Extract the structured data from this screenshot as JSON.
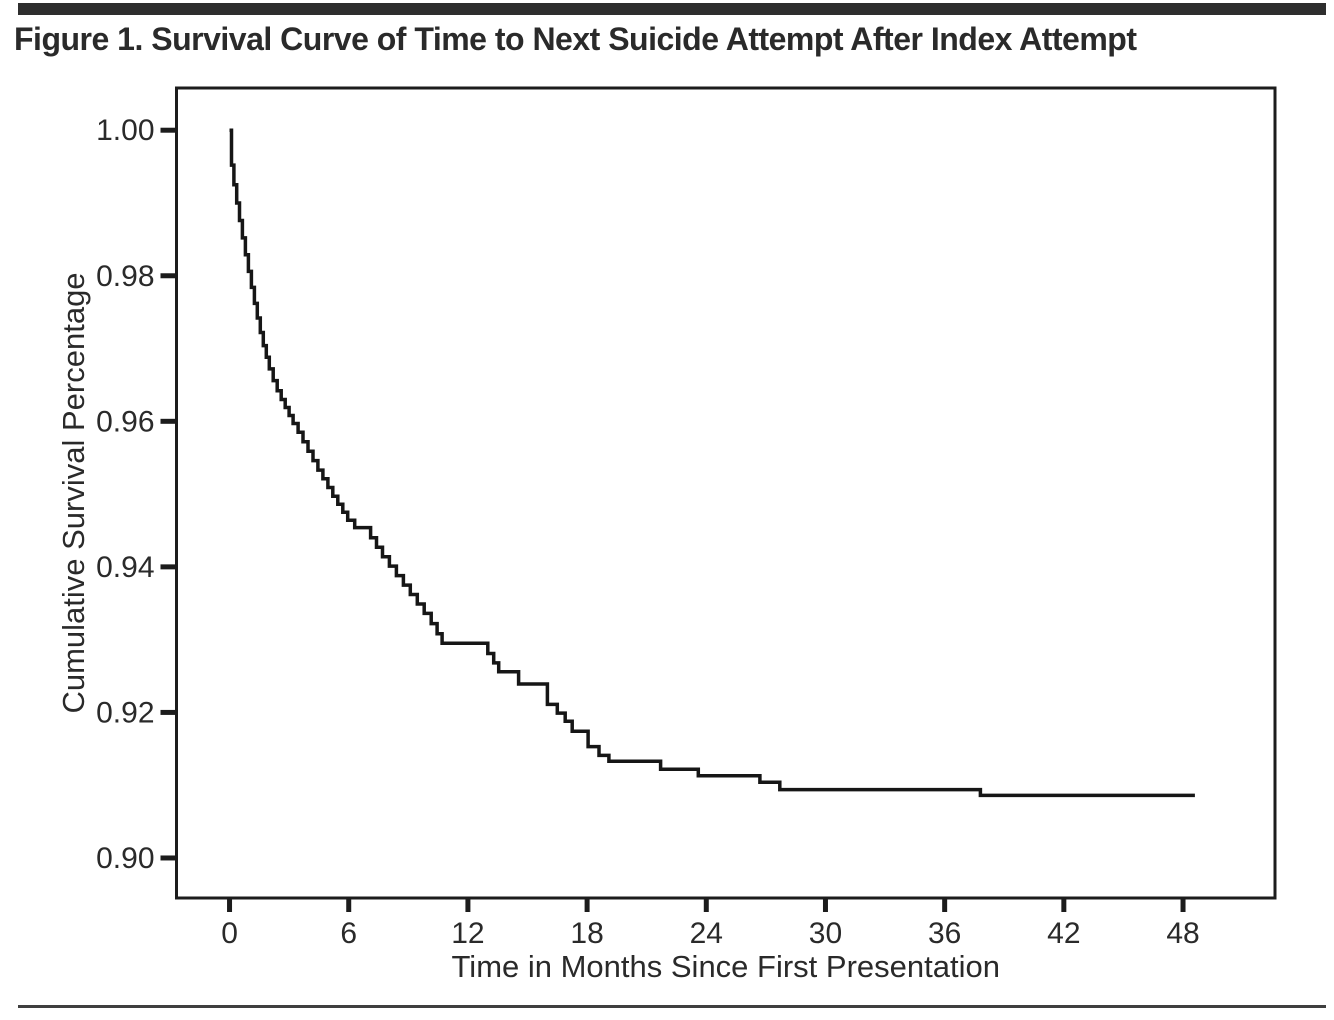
{
  "figure": {
    "title": "Figure 1. Survival Curve of Time to Next Suicide Attempt After Index Attempt"
  },
  "theme": {
    "curve_color": "#161616",
    "axis_color": "#1c1c1c",
    "text_color": "#2a2a2a",
    "top_bar_color": "#2e2e2e",
    "bottom_rule_color": "#3f3f3f"
  },
  "chart_data": {
    "type": "line",
    "subtype": "kaplan-meier-step-function",
    "title": "Figure 1. Survival Curve of Time to Next Suicide Attempt After Index Attempt",
    "xlabel": "Time in Months Since First Presentation",
    "ylabel": "Cumulative Survival Percentage",
    "grid": false,
    "legend": "none",
    "xlim": [
      -2.67,
      52.63
    ],
    "ylim": [
      0.8945,
      1.0058
    ],
    "xticks": [
      0,
      6,
      12,
      18,
      24,
      30,
      36,
      42,
      48
    ],
    "xtick_labels": [
      "0",
      "6",
      "12",
      "18",
      "24",
      "30",
      "36",
      "42",
      "48"
    ],
    "yticks": [
      0.9,
      0.92,
      0.94,
      0.96,
      0.98,
      1.0
    ],
    "ytick_labels": [
      "0.90",
      "0.92",
      "0.94",
      "0.96",
      "0.98",
      "1.00"
    ],
    "series": [
      {
        "name": "Cumulative survival percentage",
        "step": "post",
        "points": [
          [
            0.0,
            1.0
          ],
          [
            0.1,
            0.9952
          ],
          [
            0.22,
            0.9925
          ],
          [
            0.36,
            0.99
          ],
          [
            0.5,
            0.9876
          ],
          [
            0.65,
            0.9852
          ],
          [
            0.8,
            0.9829
          ],
          [
            0.95,
            0.9806
          ],
          [
            1.1,
            0.9784
          ],
          [
            1.25,
            0.9762
          ],
          [
            1.4,
            0.9742
          ],
          [
            1.55,
            0.9722
          ],
          [
            1.7,
            0.9704
          ],
          [
            1.85,
            0.9688
          ],
          [
            2.0,
            0.9672
          ],
          [
            2.2,
            0.9656
          ],
          [
            2.4,
            0.9642
          ],
          [
            2.6,
            0.963
          ],
          [
            2.8,
            0.9619
          ],
          [
            3.0,
            0.9608
          ],
          [
            3.2,
            0.9597
          ],
          [
            3.45,
            0.9585
          ],
          [
            3.7,
            0.9572
          ],
          [
            3.95,
            0.9559
          ],
          [
            4.2,
            0.9546
          ],
          [
            4.45,
            0.9533
          ],
          [
            4.7,
            0.9521
          ],
          [
            4.95,
            0.9509
          ],
          [
            5.2,
            0.9497
          ],
          [
            5.45,
            0.9486
          ],
          [
            5.7,
            0.9475
          ],
          [
            5.95,
            0.9464
          ],
          [
            6.3,
            0.9454
          ],
          [
            7.1,
            0.944
          ],
          [
            7.4,
            0.9427
          ],
          [
            7.7,
            0.9414
          ],
          [
            8.05,
            0.9401
          ],
          [
            8.4,
            0.9388
          ],
          [
            8.75,
            0.9375
          ],
          [
            9.1,
            0.9362
          ],
          [
            9.45,
            0.9349
          ],
          [
            9.8,
            0.9336
          ],
          [
            10.15,
            0.9322
          ],
          [
            10.45,
            0.9308
          ],
          [
            10.7,
            0.9295
          ],
          [
            13.0,
            0.9281
          ],
          [
            13.3,
            0.9268
          ],
          [
            13.55,
            0.9256
          ],
          [
            14.55,
            0.9239
          ],
          [
            16.0,
            0.9211
          ],
          [
            16.5,
            0.9199
          ],
          [
            16.9,
            0.9188
          ],
          [
            17.25,
            0.9174
          ],
          [
            18.05,
            0.9153
          ],
          [
            18.6,
            0.9141
          ],
          [
            19.1,
            0.9133
          ],
          [
            21.7,
            0.9122
          ],
          [
            23.6,
            0.9113
          ],
          [
            26.7,
            0.9104
          ],
          [
            27.7,
            0.9094
          ],
          [
            37.8,
            0.9086
          ],
          [
            48.6,
            0.9086
          ]
        ]
      }
    ]
  }
}
